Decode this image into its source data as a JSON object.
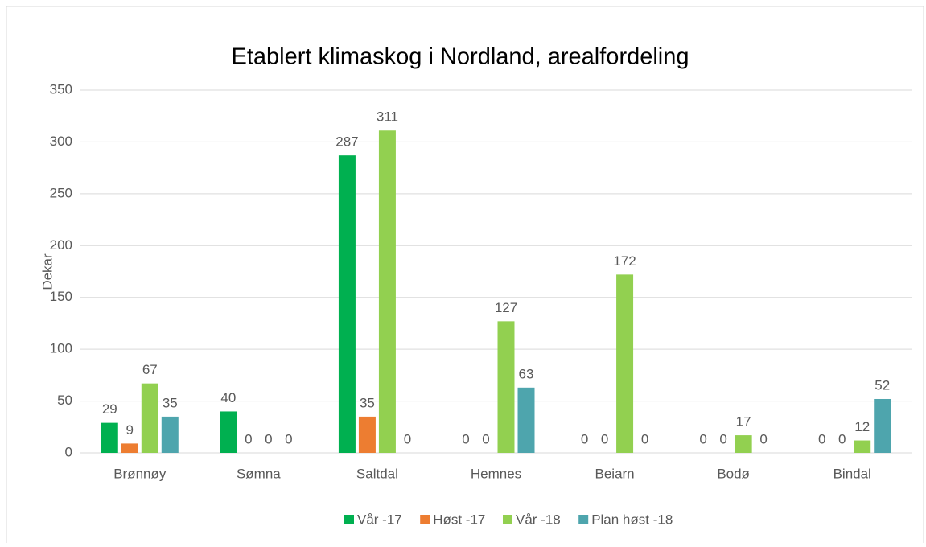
{
  "chart_data": {
    "type": "bar",
    "title": "Etablert klimaskog i Nordland, arealfordeling",
    "y_label": "Dekar",
    "categories": [
      "Brønnøy",
      "Sømna",
      "Saltdal",
      "Hemnes",
      "Beiarn",
      "Bodø",
      "Bindal"
    ],
    "series": [
      {
        "name": "Vår -17",
        "color": "#00b050",
        "values": [
          29,
          40,
          287,
          0,
          0,
          0,
          0
        ]
      },
      {
        "name": "Høst -17",
        "color": "#ed7d31",
        "values": [
          9,
          0,
          35,
          0,
          0,
          0,
          0
        ]
      },
      {
        "name": "Vår -18",
        "color": "#92d050",
        "values": [
          67,
          0,
          311,
          127,
          172,
          17,
          12
        ]
      },
      {
        "name": "Plan høst -18",
        "color": "#4ea5ad",
        "values": [
          35,
          0,
          0,
          63,
          0,
          0,
          52
        ]
      }
    ],
    "ylim": [
      0,
      350
    ],
    "yticks": [
      0,
      50,
      100,
      150,
      200,
      250,
      300,
      350
    ],
    "grid": true,
    "legend": "bottom"
  }
}
